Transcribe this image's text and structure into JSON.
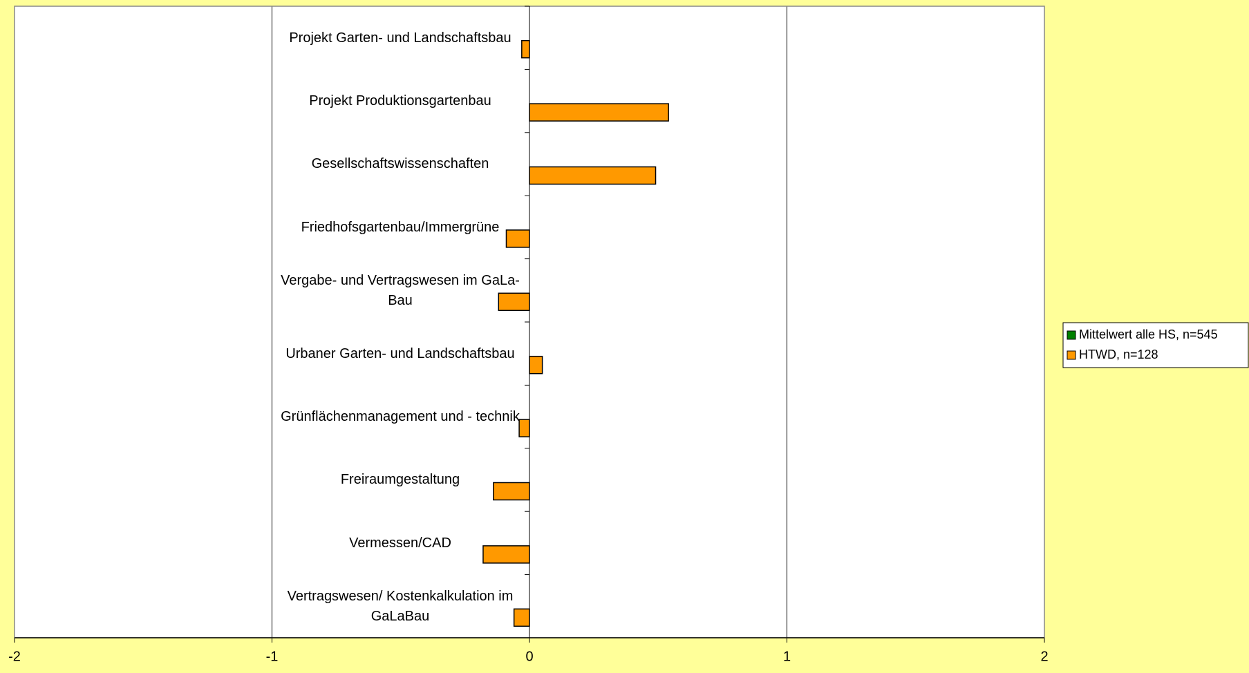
{
  "chart_data": {
    "type": "barh",
    "categories": [
      "Projekt Garten- und Landschaftsbau",
      "Projekt Produktionsgartenbau",
      "Gesellschaftswissenschaften",
      "Friedhofsgartenbau/Immergrüne",
      "Vergabe- und Vertragswesen im GaLa-Bau",
      "Urbaner Garten- und Landschaftsbau",
      "Grünflächenmanagement und - technik",
      "Freiraumgestaltung",
      "Vermessen/CAD",
      "Vertragswesen/ Kostenkalkulation im GaLaBau"
    ],
    "series": [
      {
        "name": "Mittelwert alle HS, n=545",
        "color": "#008000",
        "values": [
          0,
          0,
          0,
          0,
          0,
          0,
          0,
          0,
          0,
          0
        ]
      },
      {
        "name": "HTWD, n=128",
        "color": "#FF9900",
        "values": [
          -0.03,
          0.54,
          0.49,
          -0.09,
          -0.12,
          0.05,
          -0.04,
          -0.14,
          -0.18,
          -0.06
        ]
      }
    ],
    "xlim": [
      -2,
      2
    ],
    "xticks": [
      -2,
      -1,
      0,
      1,
      2
    ],
    "grid": true,
    "legend": "right"
  }
}
